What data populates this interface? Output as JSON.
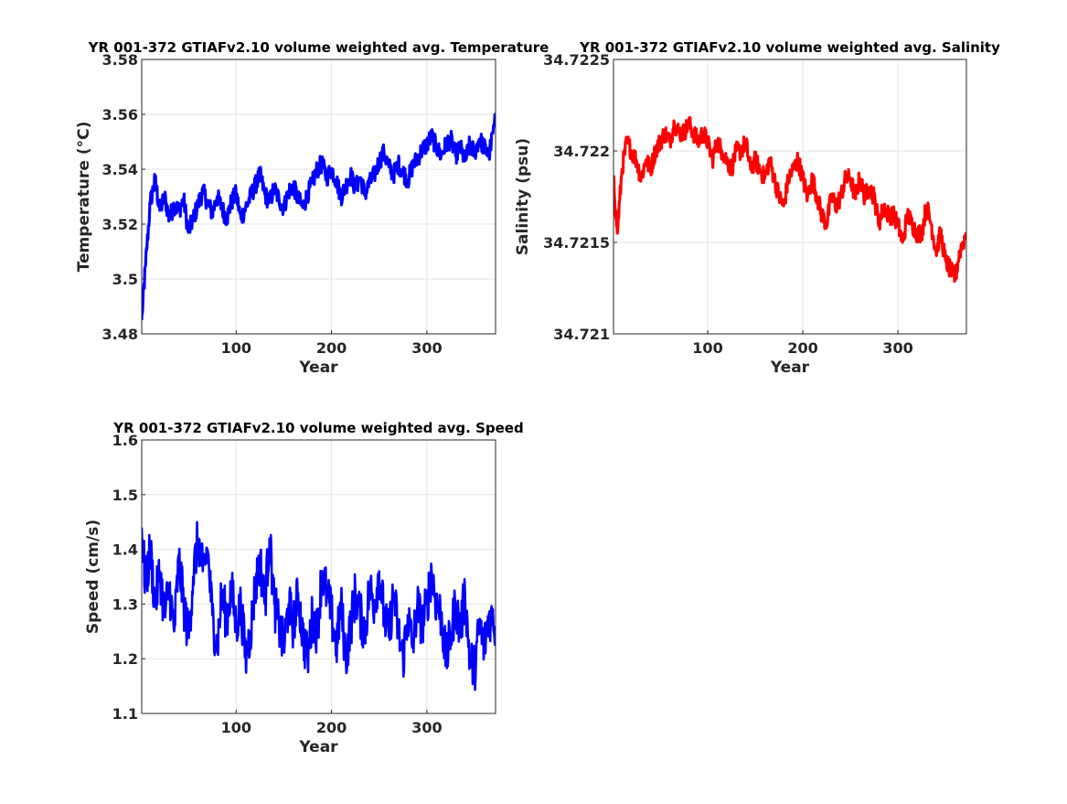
{
  "chart_data": [
    {
      "type": "line",
      "title": "YR 001-372 GTIAFv2.10 volume weighted avg. Temperature",
      "xlabel": "Year",
      "ylabel": "Temperature (°C)",
      "xlim": [
        1,
        372
      ],
      "ylim": [
        3.48,
        3.58
      ],
      "xticks": [
        100,
        200,
        300
      ],
      "xtick_labels": [
        "100",
        "200",
        "300"
      ],
      "yticks": [
        3.48,
        3.5,
        3.52,
        3.54,
        3.56,
        3.58
      ],
      "ytick_labels": [
        "3.48",
        "3.5",
        "3.52",
        "3.54",
        "3.56",
        "3.58"
      ],
      "grid": true,
      "series": [
        {
          "color": "#0000ff",
          "x": [
            1,
            5,
            10,
            15,
            20,
            25,
            30,
            35,
            40,
            45,
            50,
            55,
            60,
            65,
            70,
            75,
            80,
            85,
            90,
            95,
            100,
            105,
            110,
            115,
            120,
            125,
            130,
            135,
            140,
            145,
            150,
            155,
            160,
            165,
            170,
            175,
            180,
            185,
            190,
            195,
            200,
            205,
            210,
            215,
            220,
            225,
            230,
            235,
            240,
            245,
            250,
            255,
            260,
            265,
            270,
            275,
            280,
            285,
            290,
            295,
            300,
            305,
            310,
            315,
            320,
            325,
            330,
            335,
            340,
            345,
            350,
            355,
            360,
            365,
            372
          ],
          "y": [
            3.485,
            3.505,
            3.528,
            3.536,
            3.525,
            3.53,
            3.522,
            3.527,
            3.525,
            3.529,
            3.517,
            3.522,
            3.527,
            3.532,
            3.528,
            3.524,
            3.53,
            3.526,
            3.522,
            3.528,
            3.531,
            3.522,
            3.526,
            3.53,
            3.534,
            3.538,
            3.531,
            3.528,
            3.533,
            3.529,
            3.526,
            3.532,
            3.534,
            3.529,
            3.526,
            3.531,
            3.535,
            3.54,
            3.542,
            3.537,
            3.54,
            3.536,
            3.53,
            3.534,
            3.538,
            3.533,
            3.537,
            3.531,
            3.535,
            3.538,
            3.543,
            3.546,
            3.541,
            3.538,
            3.542,
            3.539,
            3.536,
            3.541,
            3.544,
            3.547,
            3.549,
            3.552,
            3.548,
            3.545,
            3.549,
            3.551,
            3.545,
            3.548,
            3.543,
            3.549,
            3.546,
            3.551,
            3.548,
            3.545,
            3.558
          ]
        }
      ]
    },
    {
      "type": "line",
      "title": "YR 001-372 GTIAFv2.10 volume weighted avg. Salinity",
      "xlabel": "Year",
      "ylabel": "Salinity (psu)",
      "xlim": [
        1,
        372
      ],
      "ylim": [
        34.721,
        34.7225
      ],
      "xticks": [
        100,
        200,
        300
      ],
      "xtick_labels": [
        "100",
        "200",
        "300"
      ],
      "yticks": [
        34.721,
        34.7215,
        34.722,
        34.7225
      ],
      "ytick_labels": [
        "34.721",
        "34.7215",
        "34.722",
        "34.7225"
      ],
      "grid": true,
      "series": [
        {
          "color": "#ff0000",
          "x": [
            1,
            5,
            10,
            15,
            20,
            25,
            30,
            35,
            40,
            45,
            50,
            55,
            60,
            65,
            70,
            75,
            80,
            85,
            90,
            95,
            100,
            105,
            110,
            115,
            120,
            125,
            130,
            135,
            140,
            145,
            150,
            155,
            160,
            165,
            170,
            175,
            180,
            185,
            190,
            195,
            200,
            205,
            210,
            215,
            220,
            225,
            230,
            235,
            240,
            245,
            250,
            255,
            260,
            265,
            270,
            275,
            280,
            285,
            290,
            295,
            300,
            305,
            310,
            315,
            320,
            325,
            330,
            335,
            340,
            345,
            350,
            355,
            360,
            365,
            372
          ],
          "y": [
            34.72185,
            34.72155,
            34.7219,
            34.72205,
            34.722,
            34.72195,
            34.72185,
            34.72195,
            34.7219,
            34.722,
            34.72205,
            34.7221,
            34.72205,
            34.72215,
            34.7221,
            34.7221,
            34.72215,
            34.7221,
            34.72205,
            34.7221,
            34.72205,
            34.72195,
            34.72205,
            34.722,
            34.72195,
            34.7219,
            34.722,
            34.722,
            34.72205,
            34.7219,
            34.72195,
            34.7219,
            34.72185,
            34.72195,
            34.72185,
            34.72175,
            34.7217,
            34.72185,
            34.7219,
            34.72195,
            34.72185,
            34.72175,
            34.72185,
            34.72175,
            34.72165,
            34.7216,
            34.72175,
            34.7217,
            34.72175,
            34.72185,
            34.72185,
            34.72175,
            34.72185,
            34.72175,
            34.7218,
            34.72175,
            34.7216,
            34.7217,
            34.72165,
            34.72165,
            34.7216,
            34.7215,
            34.72165,
            34.7216,
            34.72155,
            34.72155,
            34.7217,
            34.7216,
            34.72145,
            34.72155,
            34.7214,
            34.72135,
            34.7213,
            34.72145,
            34.72155
          ]
        }
      ]
    },
    {
      "type": "line",
      "title": "YR 001-372 GTIAFv2.10 volume weighted avg. Speed",
      "xlabel": "Year",
      "ylabel": "Speed (cm/s)",
      "xlim": [
        1,
        372
      ],
      "ylim": [
        1.1,
        1.6
      ],
      "xticks": [
        100,
        200,
        300
      ],
      "xtick_labels": [
        "100",
        "200",
        "300"
      ],
      "yticks": [
        1.1,
        1.2,
        1.3,
        1.4,
        1.5,
        1.6
      ],
      "ytick_labels": [
        "1.1",
        "1.2",
        "1.3",
        "1.4",
        "1.5",
        "1.6"
      ],
      "grid": true,
      "series": [
        {
          "color": "#0000ff",
          "x": [
            1,
            5,
            10,
            15,
            20,
            25,
            30,
            35,
            40,
            45,
            50,
            55,
            60,
            65,
            70,
            75,
            80,
            85,
            90,
            95,
            100,
            105,
            110,
            115,
            120,
            125,
            130,
            135,
            140,
            145,
            150,
            155,
            160,
            165,
            170,
            175,
            180,
            185,
            190,
            195,
            200,
            205,
            210,
            215,
            220,
            225,
            230,
            235,
            240,
            245,
            250,
            255,
            260,
            265,
            270,
            275,
            280,
            285,
            290,
            295,
            300,
            305,
            310,
            315,
            320,
            325,
            330,
            335,
            340,
            345,
            350,
            355,
            360,
            365,
            372
          ],
          "y": [
            1.44,
            1.33,
            1.4,
            1.3,
            1.36,
            1.28,
            1.33,
            1.25,
            1.38,
            1.3,
            1.24,
            1.35,
            1.42,
            1.36,
            1.4,
            1.28,
            1.22,
            1.32,
            1.27,
            1.33,
            1.26,
            1.3,
            1.2,
            1.25,
            1.33,
            1.38,
            1.3,
            1.42,
            1.3,
            1.26,
            1.22,
            1.3,
            1.26,
            1.32,
            1.24,
            1.2,
            1.28,
            1.25,
            1.36,
            1.32,
            1.28,
            1.22,
            1.3,
            1.2,
            1.26,
            1.32,
            1.28,
            1.25,
            1.33,
            1.3,
            1.36,
            1.28,
            1.24,
            1.32,
            1.25,
            1.2,
            1.28,
            1.22,
            1.3,
            1.26,
            1.3,
            1.36,
            1.3,
            1.28,
            1.2,
            1.24,
            1.3,
            1.25,
            1.32,
            1.2,
            1.18,
            1.26,
            1.22,
            1.28,
            1.26
          ]
        }
      ]
    }
  ]
}
